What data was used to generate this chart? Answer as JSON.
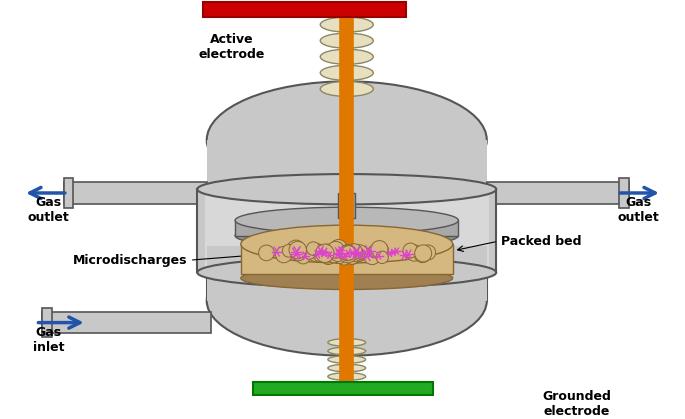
{
  "background_color": "#ffffff",
  "reactor_color": "#c8c8c8",
  "reactor_edge": "#555555",
  "electrode_orange": "#e07800",
  "electrode_red": "#cc0000",
  "electrode_green": "#22aa22",
  "coil_color": "#e8dfc0",
  "coil_edge": "#888866",
  "arrow_color": "#2255aa",
  "packed_bed_color": "#d4b880",
  "packed_bed_edge": "#886633",
  "microdischarge_color": "#dd44cc",
  "text_color": "#000000",
  "labels": {
    "active_electrode": "Active\nelectrode",
    "gas_outlet_left": "Gas\noutlet",
    "gas_outlet_right": "Gas\noutlet",
    "gas_inlet": "Gas\ninlet",
    "grounded_electrode": "Grounded\nelectrode",
    "microdischarges": "Microdischarges",
    "packed_bed": "Packed bed"
  }
}
